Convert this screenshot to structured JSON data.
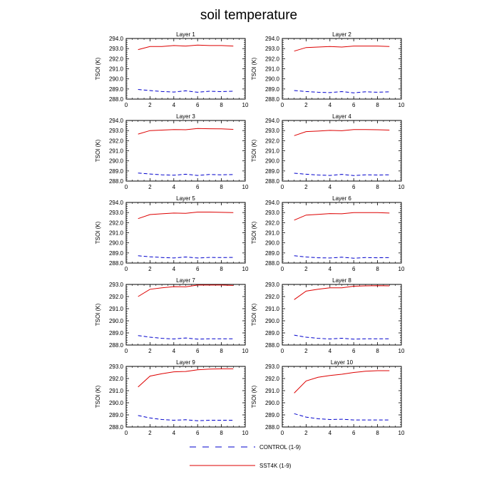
{
  "title": "soil temperature",
  "legend": [
    {
      "label": "CONTROL (1-9)",
      "color": "#0000cc",
      "dash": "dashed"
    },
    {
      "label": "SST4K (1-9)",
      "color": "#dd0000",
      "dash": "solid"
    }
  ],
  "chart_data": [
    {
      "type": "line",
      "title": "Layer 1",
      "xlabel": "",
      "ylabel": "TSOI  (K)",
      "xlim": [
        0,
        10
      ],
      "xticks": [
        0,
        2,
        4,
        6,
        8,
        10
      ],
      "ylim": [
        288,
        294
      ],
      "yticks": [
        288,
        289,
        290,
        291,
        292,
        293,
        294
      ],
      "ytick_labels": [
        "288.0",
        "289.0",
        "290.0",
        "291.0",
        "292.0",
        "293.0",
        "294.0"
      ],
      "x": [
        1,
        2,
        3,
        4,
        5,
        6,
        7,
        8,
        9
      ],
      "series": [
        {
          "name": "SST4K (1-9)",
          "values": [
            292.9,
            293.2,
            293.2,
            293.3,
            293.25,
            293.35,
            293.3,
            293.3,
            293.25
          ]
        },
        {
          "name": "CONTROL (1-9)",
          "values": [
            288.95,
            288.85,
            288.75,
            288.7,
            288.82,
            288.68,
            288.78,
            288.74,
            288.78
          ]
        }
      ]
    },
    {
      "type": "line",
      "title": "Layer 2",
      "xlabel": "",
      "ylabel": "TSOI  (K)",
      "xlim": [
        0,
        10
      ],
      "xticks": [
        0,
        2,
        4,
        6,
        8,
        10
      ],
      "ylim": [
        288,
        294
      ],
      "yticks": [
        288,
        289,
        290,
        291,
        292,
        293,
        294
      ],
      "ytick_labels": [
        "288.0",
        "289.0",
        "290.0",
        "291.0",
        "292.0",
        "293.0",
        "294.0"
      ],
      "x": [
        1,
        2,
        3,
        4,
        5,
        6,
        7,
        8,
        9
      ],
      "series": [
        {
          "name": "SST4K (1-9)",
          "values": [
            292.75,
            293.1,
            293.15,
            293.2,
            293.15,
            293.25,
            293.25,
            293.25,
            293.2
          ]
        },
        {
          "name": "CONTROL (1-9)",
          "values": [
            288.85,
            288.75,
            288.68,
            288.64,
            288.74,
            288.62,
            288.72,
            288.68,
            288.72
          ]
        }
      ]
    },
    {
      "type": "line",
      "title": "Layer 3",
      "xlabel": "",
      "ylabel": "TSOI  (K)",
      "xlim": [
        0,
        10
      ],
      "xticks": [
        0,
        2,
        4,
        6,
        8,
        10
      ],
      "ylim": [
        288,
        294
      ],
      "yticks": [
        288,
        289,
        290,
        291,
        292,
        293,
        294
      ],
      "ytick_labels": [
        "288.0",
        "289.0",
        "290.0",
        "291.0",
        "292.0",
        "293.0",
        "294.0"
      ],
      "x": [
        1,
        2,
        3,
        4,
        5,
        6,
        7,
        8,
        9
      ],
      "series": [
        {
          "name": "SST4K (1-9)",
          "values": [
            292.65,
            293.0,
            293.05,
            293.1,
            293.08,
            293.2,
            293.18,
            293.17,
            293.12
          ]
        },
        {
          "name": "CONTROL (1-9)",
          "values": [
            288.8,
            288.7,
            288.62,
            288.58,
            288.68,
            288.56,
            288.65,
            288.62,
            288.65
          ]
        }
      ]
    },
    {
      "type": "line",
      "title": "Layer 4",
      "xlabel": "",
      "ylabel": "TSOI  (K)",
      "xlim": [
        0,
        10
      ],
      "xticks": [
        0,
        2,
        4,
        6,
        8,
        10
      ],
      "ylim": [
        288,
        294
      ],
      "yticks": [
        288,
        289,
        290,
        291,
        292,
        293,
        294
      ],
      "ytick_labels": [
        "288.0",
        "289.0",
        "290.0",
        "291.0",
        "292.0",
        "293.0",
        "294.0"
      ],
      "x": [
        1,
        2,
        3,
        4,
        5,
        6,
        7,
        8,
        9
      ],
      "series": [
        {
          "name": "SST4K (1-9)",
          "values": [
            292.5,
            292.9,
            292.95,
            293.02,
            292.98,
            293.1,
            293.1,
            293.08,
            293.05
          ]
        },
        {
          "name": "CONTROL (1-9)",
          "values": [
            288.78,
            288.68,
            288.6,
            288.56,
            288.66,
            288.54,
            288.62,
            288.6,
            288.62
          ]
        }
      ]
    },
    {
      "type": "line",
      "title": "Layer 5",
      "xlabel": "",
      "ylabel": "TSOI  (K)",
      "xlim": [
        0,
        10
      ],
      "xticks": [
        0,
        2,
        4,
        6,
        8,
        10
      ],
      "ylim": [
        288,
        294
      ],
      "yticks": [
        288,
        289,
        290,
        291,
        292,
        293,
        294
      ],
      "ytick_labels": [
        "288.0",
        "289.0",
        "290.0",
        "291.0",
        "292.0",
        "293.0",
        "294.0"
      ],
      "x": [
        1,
        2,
        3,
        4,
        5,
        6,
        7,
        8,
        9
      ],
      "series": [
        {
          "name": "SST4K (1-9)",
          "values": [
            292.4,
            292.8,
            292.88,
            292.95,
            292.92,
            293.05,
            293.05,
            293.02,
            293.0
          ]
        },
        {
          "name": "CONTROL (1-9)",
          "values": [
            288.72,
            288.62,
            288.55,
            288.5,
            288.6,
            288.5,
            288.56,
            288.54,
            288.56
          ]
        }
      ]
    },
    {
      "type": "line",
      "title": "Layer 6",
      "xlabel": "",
      "ylabel": "TSOI  (K)",
      "xlim": [
        0,
        10
      ],
      "xticks": [
        0,
        2,
        4,
        6,
        8,
        10
      ],
      "ylim": [
        288,
        294
      ],
      "yticks": [
        288,
        289,
        290,
        291,
        292,
        293,
        294
      ],
      "ytick_labels": [
        "288.0",
        "289.0",
        "290.0",
        "291.0",
        "292.0",
        "293.0",
        "294.0"
      ],
      "x": [
        1,
        2,
        3,
        4,
        5,
        6,
        7,
        8,
        9
      ],
      "series": [
        {
          "name": "SST4K (1-9)",
          "values": [
            292.25,
            292.75,
            292.82,
            292.9,
            292.88,
            293.0,
            293.0,
            293.0,
            292.95
          ]
        },
        {
          "name": "CONTROL (1-9)",
          "values": [
            288.72,
            288.6,
            288.52,
            288.5,
            288.58,
            288.48,
            288.54,
            288.52,
            288.54
          ]
        }
      ]
    },
    {
      "type": "line",
      "title": "Layer 7",
      "xlabel": "",
      "ylabel": "TSOI  (K)",
      "xlim": [
        0,
        10
      ],
      "xticks": [
        0,
        2,
        4,
        6,
        8,
        10
      ],
      "ylim": [
        288,
        293
      ],
      "yticks": [
        288,
        289,
        290,
        291,
        292,
        293
      ],
      "ytick_labels": [
        "288.0",
        "289.0",
        "290.0",
        "291.0",
        "292.0",
        "293.0"
      ],
      "x": [
        1,
        2,
        3,
        4,
        5,
        6,
        7,
        8,
        9
      ],
      "series": [
        {
          "name": "SST4K (1-9)",
          "values": [
            292.0,
            292.6,
            292.72,
            292.82,
            292.8,
            292.95,
            292.95,
            292.95,
            292.92
          ]
        },
        {
          "name": "CONTROL (1-9)",
          "values": [
            288.78,
            288.65,
            288.55,
            288.5,
            288.58,
            288.48,
            288.52,
            288.52,
            288.52
          ]
        }
      ]
    },
    {
      "type": "line",
      "title": "Layer 8",
      "xlabel": "",
      "ylabel": "TSOI  (K)",
      "xlim": [
        0,
        10
      ],
      "xticks": [
        0,
        2,
        4,
        6,
        8,
        10
      ],
      "ylim": [
        288,
        293
      ],
      "yticks": [
        288,
        289,
        290,
        291,
        292,
        293
      ],
      "ytick_labels": [
        "288.0",
        "289.0",
        "290.0",
        "291.0",
        "292.0",
        "293.0"
      ],
      "x": [
        1,
        2,
        3,
        4,
        5,
        6,
        7,
        8,
        9
      ],
      "series": [
        {
          "name": "SST4K (1-9)",
          "values": [
            291.75,
            292.45,
            292.6,
            292.72,
            292.72,
            292.85,
            292.88,
            292.9,
            292.88
          ]
        },
        {
          "name": "CONTROL (1-9)",
          "values": [
            288.82,
            288.65,
            288.55,
            288.5,
            288.56,
            288.48,
            288.52,
            288.52,
            288.52
          ]
        }
      ]
    },
    {
      "type": "line",
      "title": "Layer 9",
      "xlabel": "",
      "ylabel": "TSOI  (K)",
      "xlim": [
        0,
        10
      ],
      "xticks": [
        0,
        2,
        4,
        6,
        8,
        10
      ],
      "ylim": [
        288,
        293
      ],
      "yticks": [
        288,
        289,
        290,
        291,
        292,
        293
      ],
      "ytick_labels": [
        "288.0",
        "289.0",
        "290.0",
        "291.0",
        "292.0",
        "293.0"
      ],
      "x": [
        1,
        2,
        3,
        4,
        5,
        6,
        7,
        8,
        9
      ],
      "series": [
        {
          "name": "SST4K (1-9)",
          "values": [
            291.3,
            292.2,
            292.4,
            292.55,
            292.58,
            292.72,
            292.78,
            292.8,
            292.8
          ]
        },
        {
          "name": "CONTROL (1-9)",
          "values": [
            288.95,
            288.75,
            288.62,
            288.56,
            288.6,
            288.52,
            288.56,
            288.56,
            288.56
          ]
        }
      ]
    },
    {
      "type": "line",
      "title": "Layer 10",
      "xlabel": "",
      "ylabel": "TSOI  (K)",
      "xlim": [
        0,
        10
      ],
      "xticks": [
        0,
        2,
        4,
        6,
        8,
        10
      ],
      "ylim": [
        288,
        293
      ],
      "yticks": [
        288,
        289,
        290,
        291,
        292,
        293
      ],
      "ytick_labels": [
        "288.0",
        "289.0",
        "290.0",
        "291.0",
        "292.0",
        "293.0"
      ],
      "x": [
        1,
        2,
        3,
        4,
        5,
        6,
        7,
        8,
        9
      ],
      "series": [
        {
          "name": "SST4K (1-9)",
          "values": [
            290.8,
            291.8,
            292.1,
            292.25,
            292.35,
            292.5,
            292.6,
            292.65,
            292.65
          ]
        },
        {
          "name": "CONTROL (1-9)",
          "values": [
            289.1,
            288.82,
            288.68,
            288.62,
            288.64,
            288.58,
            288.58,
            288.58,
            288.58
          ]
        }
      ]
    }
  ]
}
